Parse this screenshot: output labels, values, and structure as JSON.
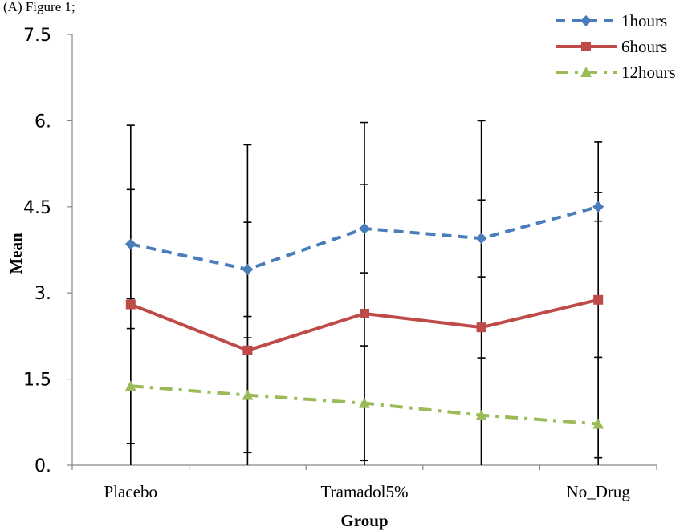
{
  "page_fragment": "(A) Figure 1;",
  "chart_data": {
    "type": "line",
    "xlabel": "Group",
    "ylabel": "Mean",
    "ylim": [
      0,
      7.5
    ],
    "yticks": [
      0,
      1.5,
      3,
      4.5,
      6,
      7.5
    ],
    "ytick_labels": [
      "0.",
      "1.5",
      "3.",
      "4.5",
      "6.",
      "7.5"
    ],
    "categories": [
      "Placebo",
      "",
      "Tramadol5%",
      "",
      "No_Drug"
    ],
    "legend_position": "top-right",
    "grid": false,
    "series": [
      {
        "name": "1hours",
        "color": "#4a7ebb",
        "line_style": "dashed",
        "marker": "diamond",
        "values": [
          3.85,
          3.41,
          4.12,
          3.95,
          4.5
        ],
        "error": [
          0.95,
          0.82,
          0.77,
          0.67,
          0.25
        ]
      },
      {
        "name": "6hours",
        "color": "#be4b48",
        "line_style": "solid",
        "marker": "square",
        "values": [
          2.8,
          2.0,
          2.64,
          2.4,
          2.88
        ],
        "error": [
          3.12,
          3.58,
          3.33,
          3.6,
          2.75
        ]
      },
      {
        "name": "12hours",
        "color": "#9bbb59",
        "line_style": "dash-dot",
        "marker": "triangle",
        "values": [
          1.38,
          1.22,
          1.08,
          0.87,
          0.72
        ],
        "error": [
          1.0,
          1.0,
          1.0,
          1.0,
          1.16
        ]
      }
    ]
  }
}
